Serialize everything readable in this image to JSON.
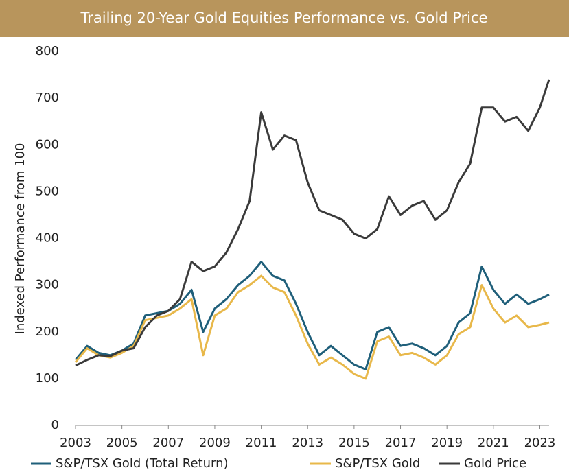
{
  "chart_data": {
    "type": "line",
    "title": "Trailing 20-Year Gold Equities Performance vs. Gold Price",
    "y_label": "Indexed Performance from 100",
    "x": [
      2003,
      2003.5,
      2004,
      2004.5,
      2005,
      2005.5,
      2006,
      2006.5,
      2007,
      2007.5,
      2008,
      2008.5,
      2009,
      2009.5,
      2010,
      2010.5,
      2011,
      2011.5,
      2012,
      2012.5,
      2013,
      2013.5,
      2014,
      2014.5,
      2015,
      2015.5,
      2016,
      2016.5,
      2017,
      2017.5,
      2018,
      2018.5,
      2019,
      2019.5,
      2020,
      2020.5,
      2021,
      2021.5,
      2022,
      2022.5,
      2023,
      2023.4
    ],
    "series": [
      {
        "name": "S&P/TSX Gold (Total Return)",
        "color": "#1f5f7a",
        "values": [
          140,
          170,
          155,
          150,
          160,
          175,
          235,
          240,
          245,
          260,
          290,
          200,
          250,
          270,
          300,
          320,
          350,
          320,
          310,
          260,
          200,
          150,
          170,
          150,
          130,
          120,
          200,
          210,
          170,
          175,
          165,
          150,
          170,
          220,
          240,
          340,
          290,
          260,
          280,
          260,
          270,
          280
        ]
      },
      {
        "name": "S&P/TSX Gold",
        "color": "#e8b84a",
        "values": [
          135,
          165,
          150,
          145,
          155,
          170,
          225,
          230,
          235,
          250,
          270,
          150,
          235,
          250,
          285,
          300,
          320,
          295,
          285,
          235,
          175,
          130,
          145,
          130,
          110,
          100,
          180,
          190,
          150,
          155,
          145,
          130,
          150,
          195,
          210,
          300,
          250,
          220,
          235,
          210,
          215,
          220
        ]
      },
      {
        "name": "Gold Price",
        "color": "#3a3a3a",
        "values": [
          128,
          140,
          150,
          148,
          160,
          165,
          210,
          235,
          245,
          270,
          350,
          330,
          340,
          370,
          420,
          480,
          670,
          590,
          620,
          610,
          520,
          460,
          450,
          440,
          410,
          400,
          420,
          490,
          450,
          470,
          480,
          440,
          460,
          520,
          560,
          680,
          680,
          650,
          660,
          630,
          680,
          740
        ]
      }
    ],
    "xlim": [
      2003,
      2023.4
    ],
    "xticks": [
      2003,
      2005,
      2007,
      2009,
      2011,
      2013,
      2015,
      2017,
      2019,
      2021,
      2023
    ],
    "ylim": [
      0,
      800
    ],
    "yticks": [
      0,
      100,
      200,
      300,
      400,
      500,
      600,
      700,
      800
    ],
    "legend": "bottom"
  }
}
